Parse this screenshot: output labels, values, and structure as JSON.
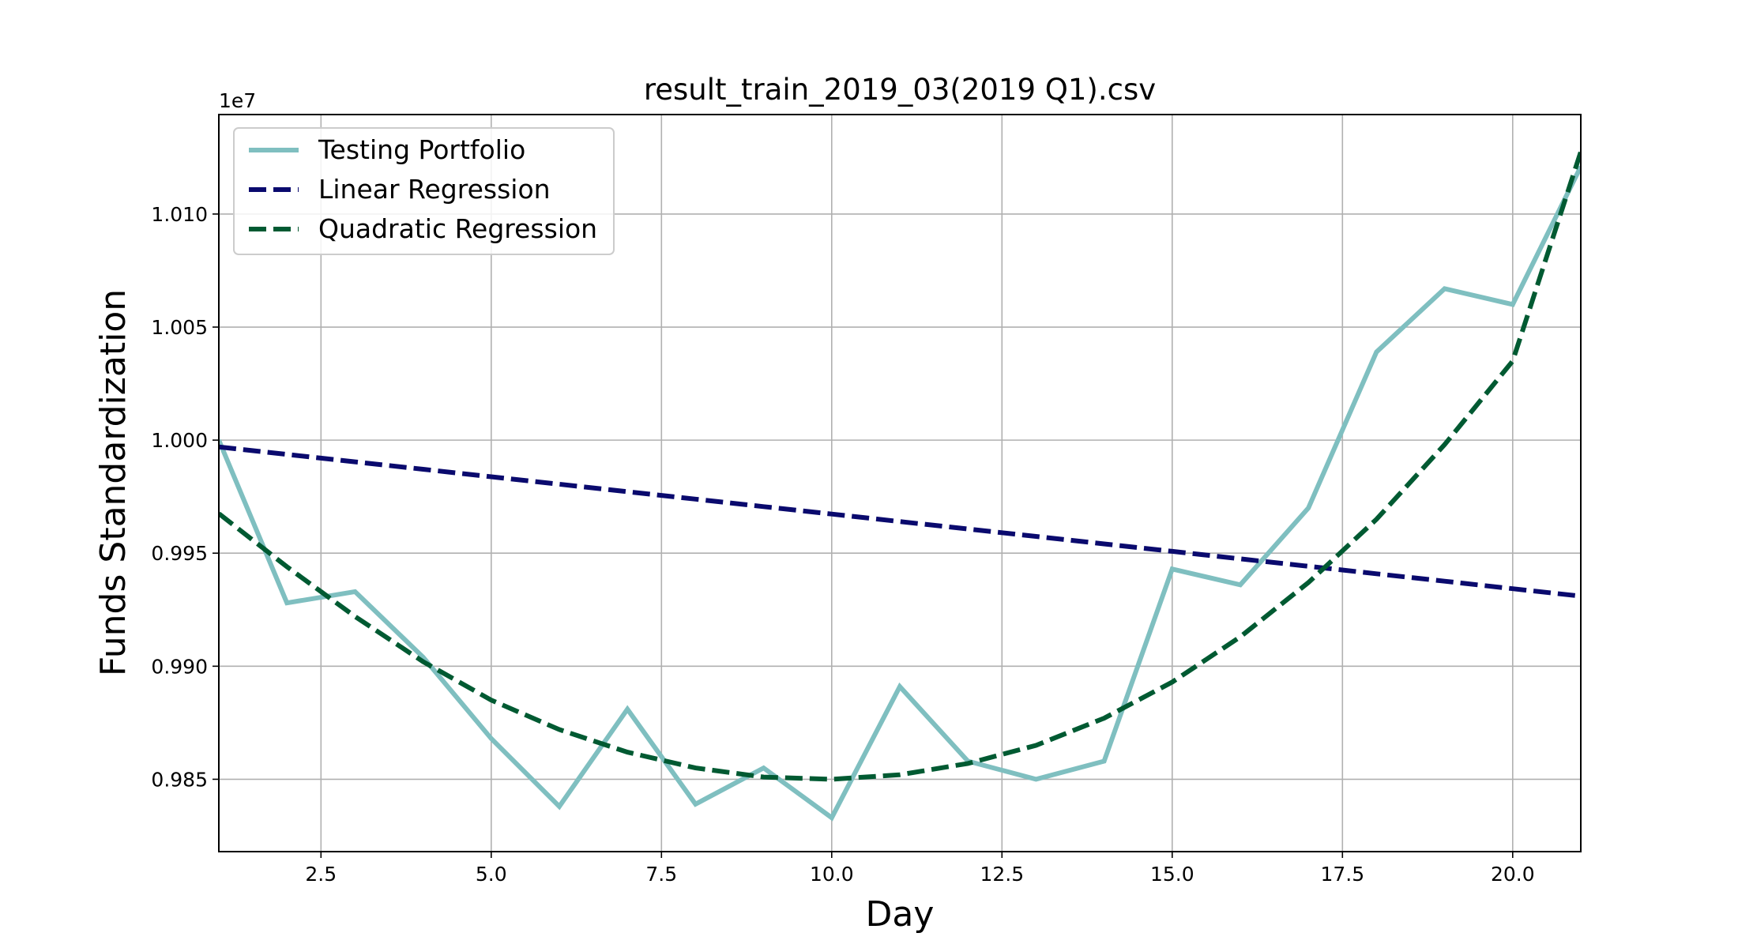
{
  "chart_data": {
    "type": "line",
    "title": "result_train_2019_03(2019 Q1).csv",
    "xlabel": "Day",
    "ylabel": "Funds Standardization",
    "offset_text": "1e7",
    "xlim": [
      1,
      21
    ],
    "ylim": [
      0.9818,
      1.0144
    ],
    "x_ticks": [
      2.5,
      5.0,
      7.5,
      10.0,
      12.5,
      15.0,
      17.5,
      20.0
    ],
    "x_tick_labels": [
      "2.5",
      "5.0",
      "7.5",
      "10.0",
      "12.5",
      "15.0",
      "17.5",
      "20.0"
    ],
    "y_ticks": [
      0.985,
      0.99,
      0.995,
      1.0,
      1.005,
      1.01
    ],
    "y_tick_labels": [
      "0.985",
      "0.990",
      "0.995",
      "1.000",
      "1.005",
      "1.010"
    ],
    "grid": true,
    "legend_position": "upper-left",
    "x": [
      1,
      2,
      3,
      4,
      5,
      6,
      7,
      8,
      9,
      10,
      11,
      12,
      13,
      14,
      15,
      16,
      17,
      18,
      19,
      20,
      21
    ],
    "series": [
      {
        "name": "Testing Portfolio",
        "style": "solid",
        "color": "#7fbfc0",
        "values": [
          1.0,
          0.9928,
          0.9933,
          0.9904,
          0.9868,
          0.9838,
          0.9881,
          0.9839,
          0.9855,
          0.9833,
          0.9891,
          0.9858,
          0.985,
          0.9858,
          0.9943,
          0.9936,
          0.997,
          1.0039,
          1.0067,
          1.006,
          1.0121
        ]
      },
      {
        "name": "Linear Regression",
        "style": "dashed",
        "color": "#0a0a6e",
        "values": [
          0.9997,
          0.99937,
          0.99904,
          0.99871,
          0.99838,
          0.99805,
          0.99772,
          0.99739,
          0.99706,
          0.99673,
          0.9964,
          0.99607,
          0.99574,
          0.99541,
          0.99508,
          0.99475,
          0.99442,
          0.99409,
          0.99376,
          0.99343,
          0.9931
        ]
      },
      {
        "name": "Quadratic Regression",
        "style": "dashed",
        "color": "#005a32",
        "values": [
          0.99675,
          0.9944,
          0.9922,
          0.9902,
          0.9885,
          0.9872,
          0.9862,
          0.9855,
          0.9851,
          0.985,
          0.9852,
          0.9857,
          0.9865,
          0.9877,
          0.9893,
          0.9913,
          0.9937,
          0.9965,
          0.9998,
          1.0035,
          1.01275
        ]
      }
    ]
  }
}
